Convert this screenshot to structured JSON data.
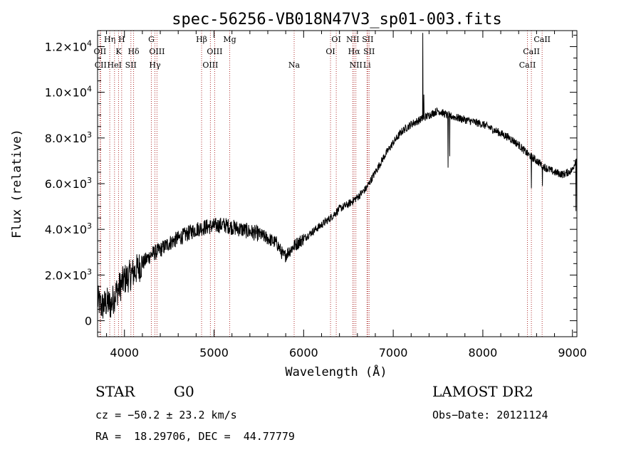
{
  "chart_data": {
    "type": "line",
    "title": "spec-56256-VB018N47V3_sp01-003.fits",
    "xlabel": "Wavelength (Å)",
    "ylabel": "Flux (relative)",
    "xlim": [
      3700,
      9050
    ],
    "ylim": [
      -700,
      12700
    ],
    "x_ticks": [
      4000,
      5000,
      6000,
      7000,
      8000,
      9000
    ],
    "x_tick_labels": [
      "4000",
      "5000",
      "6000",
      "7000",
      "8000",
      "9000"
    ],
    "y_ticks": [
      {
        "value": 0,
        "base": "0",
        "exp": ""
      },
      {
        "value": 2000,
        "base": "2.0×10",
        "exp": "3"
      },
      {
        "value": 4000,
        "base": "4.0×10",
        "exp": "3"
      },
      {
        "value": 6000,
        "base": "6.0×10",
        "exp": "3"
      },
      {
        "value": 8000,
        "base": "8.0×10",
        "exp": "3"
      },
      {
        "value": 10000,
        "base": "1.0×10",
        "exp": "4"
      },
      {
        "value": 12000,
        "base": "1.2×10",
        "exp": "4"
      }
    ],
    "spectrum_anchor_points": [
      [
        3700,
        900
      ],
      [
        3750,
        600
      ],
      [
        3800,
        800
      ],
      [
        3850,
        700
      ],
      [
        3900,
        1200
      ],
      [
        3950,
        1500
      ],
      [
        4000,
        1800
      ],
      [
        4100,
        2100
      ],
      [
        4200,
        2500
      ],
      [
        4300,
        2900
      ],
      [
        4400,
        3100
      ],
      [
        4500,
        3400
      ],
      [
        4600,
        3600
      ],
      [
        4700,
        3800
      ],
      [
        4800,
        4000
      ],
      [
        4900,
        4100
      ],
      [
        5000,
        4150
      ],
      [
        5100,
        4200
      ],
      [
        5200,
        4100
      ],
      [
        5300,
        4000
      ],
      [
        5400,
        3900
      ],
      [
        5500,
        3800
      ],
      [
        5600,
        3600
      ],
      [
        5700,
        3400
      ],
      [
        5780,
        2800
      ],
      [
        5850,
        3100
      ],
      [
        5900,
        3300
      ],
      [
        6000,
        3600
      ],
      [
        6100,
        3900
      ],
      [
        6200,
        4200
      ],
      [
        6300,
        4500
      ],
      [
        6400,
        4900
      ],
      [
        6500,
        5100
      ],
      [
        6600,
        5400
      ],
      [
        6700,
        5800
      ],
      [
        6800,
        6500
      ],
      [
        6900,
        7200
      ],
      [
        7000,
        7800
      ],
      [
        7100,
        8300
      ],
      [
        7200,
        8600
      ],
      [
        7300,
        8800
      ],
      [
        7400,
        9000
      ],
      [
        7500,
        9200
      ],
      [
        7600,
        9000
      ],
      [
        7700,
        8900
      ],
      [
        7800,
        8800
      ],
      [
        7900,
        8700
      ],
      [
        8000,
        8600
      ],
      [
        8100,
        8400
      ],
      [
        8200,
        8200
      ],
      [
        8300,
        8000
      ],
      [
        8400,
        7700
      ],
      [
        8500,
        7300
      ],
      [
        8600,
        7000
      ],
      [
        8700,
        6700
      ],
      [
        8800,
        6500
      ],
      [
        8900,
        6400
      ],
      [
        9000,
        6600
      ],
      [
        9050,
        7200
      ]
    ],
    "spikes": [
      {
        "x": 7330,
        "y": 12600
      },
      {
        "x": 7340,
        "y": 9900
      },
      {
        "x": 7610,
        "y": 6700
      },
      {
        "x": 7630,
        "y": 7200
      },
      {
        "x": 8540,
        "y": 5800
      },
      {
        "x": 8665,
        "y": 5900
      },
      {
        "x": 9040,
        "y": 4800
      }
    ],
    "emission_lines": [
      {
        "x": 3727,
        "label": "OII",
        "row": 1
      },
      {
        "x": 3734,
        "label": "CII",
        "row": 2
      },
      {
        "x": 3836,
        "label": "Hη",
        "row": 0
      },
      {
        "x": 3889,
        "label": "HeI",
        "row": 2
      },
      {
        "x": 3934,
        "label": "K",
        "row": 1
      },
      {
        "x": 3969,
        "label": "H",
        "row": 0
      },
      {
        "x": 4072,
        "label": "SII",
        "row": 2
      },
      {
        "x": 4102,
        "label": "Hδ",
        "row": 1
      },
      {
        "x": 4300,
        "label": "G",
        "row": 0
      },
      {
        "x": 4340,
        "label": "Hγ",
        "row": 2
      },
      {
        "x": 4363,
        "label": "OIII",
        "row": 1
      },
      {
        "x": 4861,
        "label": "Hβ",
        "row": 0
      },
      {
        "x": 4959,
        "label": "OIII",
        "row": 2
      },
      {
        "x": 5007,
        "label": "OIII",
        "row": 1
      },
      {
        "x": 5175,
        "label": "Mg",
        "row": 0
      },
      {
        "x": 5894,
        "label": "Na",
        "row": 2
      },
      {
        "x": 6300,
        "label": "OI",
        "row": 1
      },
      {
        "x": 6364,
        "label": "OI",
        "row": 0
      },
      {
        "x": 6548,
        "label": "NII",
        "row": 0
      },
      {
        "x": 6563,
        "label": "Hα",
        "row": 1
      },
      {
        "x": 6583,
        "label": "NII",
        "row": 2
      },
      {
        "x": 6707,
        "label": "Li",
        "row": 2
      },
      {
        "x": 6716,
        "label": "SII",
        "row": 0
      },
      {
        "x": 6731,
        "label": "SII",
        "row": 1
      },
      {
        "x": 8498,
        "label": "CaII",
        "row": 2
      },
      {
        "x": 8542,
        "label": "CaII",
        "row": 1
      },
      {
        "x": 8662,
        "label": "CaII",
        "row": 0
      }
    ]
  },
  "info": {
    "class": "STAR",
    "subclass": "G0",
    "survey": "LAMOST DR2",
    "velocity": "cz = −50.2 ± 23.2 km/s",
    "obs_date": "Obs−Date: 20121124",
    "coords": "RA =  18.29706, DEC =  44.77779"
  },
  "colors": {
    "axis": "#000000",
    "spectrum": "#000000",
    "lines": "#b03030"
  }
}
